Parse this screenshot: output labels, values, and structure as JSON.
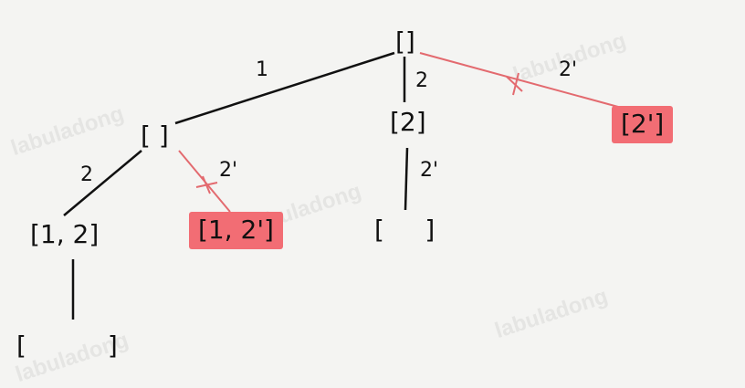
{
  "colors": {
    "background": "#f4f4f2",
    "edge": "#111111",
    "pruned_edge": "#e36a6f",
    "pruned_fill": "#f26d74"
  },
  "watermark": "labuladong",
  "nodes": {
    "root": "[]",
    "left": "[ ]",
    "mid": "[2]",
    "right_pruned": "[2']",
    "left_left": "[1, 2]",
    "left_pruned": "[1, 2']",
    "mid_child": "[     ]",
    "leaf": "[          ]"
  },
  "edges": {
    "root_left": "1",
    "root_mid": "2",
    "root_right": "2'",
    "left_leftleft": "2",
    "left_pruned": "2'",
    "mid_child": "2'"
  }
}
